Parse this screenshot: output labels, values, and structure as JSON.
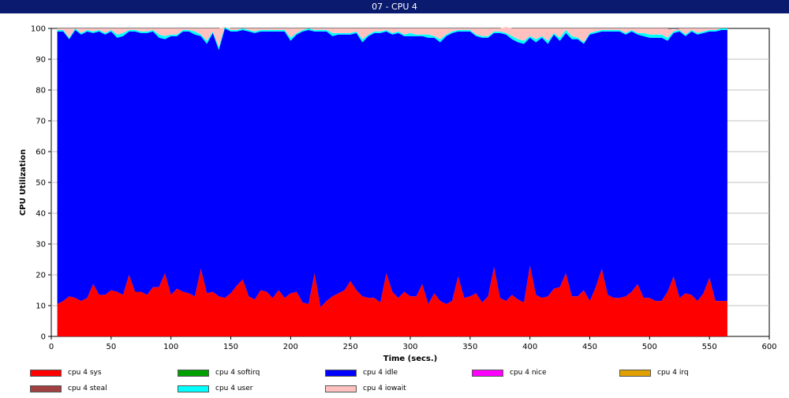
{
  "window": {
    "title": "07 - CPU 4"
  },
  "chart_data": {
    "type": "area",
    "stacked": true,
    "title": "07 - CPU 4",
    "xlabel": "Time (secs.)",
    "ylabel": "CPU Utilization",
    "xlim": [
      0,
      600
    ],
    "ylim": [
      0,
      100
    ],
    "xticks": [
      0,
      50,
      100,
      150,
      200,
      250,
      300,
      350,
      400,
      450,
      500,
      550,
      600
    ],
    "yticks": [
      0,
      10,
      20,
      30,
      40,
      50,
      60,
      70,
      80,
      90,
      100
    ],
    "grid": "horizontal",
    "legend_position": "bottom",
    "x": [
      5,
      10,
      15,
      20,
      25,
      30,
      35,
      40,
      45,
      50,
      55,
      60,
      65,
      70,
      75,
      80,
      85,
      90,
      95,
      100,
      105,
      110,
      115,
      120,
      125,
      130,
      135,
      140,
      145,
      150,
      155,
      160,
      165,
      170,
      175,
      180,
      185,
      190,
      195,
      200,
      205,
      210,
      215,
      220,
      225,
      230,
      235,
      240,
      245,
      250,
      255,
      260,
      265,
      270,
      275,
      280,
      285,
      290,
      295,
      300,
      305,
      310,
      315,
      320,
      325,
      330,
      335,
      340,
      345,
      350,
      355,
      360,
      365,
      370,
      375,
      380,
      385,
      390,
      395,
      400,
      405,
      410,
      415,
      420,
      425,
      430,
      435,
      440,
      445,
      450,
      455,
      460,
      465,
      470,
      475,
      480,
      485,
      490,
      495,
      500,
      505,
      510,
      515,
      520,
      525,
      530,
      535,
      540,
      545,
      550,
      555,
      560,
      565
    ],
    "series": [
      {
        "name": "cpu 4 sys",
        "color": "#ff0000",
        "values": [
          10.5,
          11.5,
          13,
          12.5,
          11.5,
          12.5,
          17,
          13.5,
          13.5,
          15,
          14.5,
          13.5,
          20,
          14.5,
          14.5,
          13.5,
          16,
          16,
          20.5,
          13.5,
          15.5,
          14.5,
          14,
          13,
          22,
          14,
          14.5,
          13,
          12.5,
          14,
          16.5,
          18.5,
          13,
          12,
          15,
          14.5,
          12.5,
          15,
          12.5,
          14,
          14.5,
          11,
          10.5,
          20.5,
          9.5,
          11.5,
          13,
          14,
          15,
          18,
          15,
          13,
          12.5,
          12.5,
          11,
          20.5,
          14.5,
          12.5,
          14.5,
          13,
          13,
          17,
          10.5,
          14,
          11.5,
          10.5,
          11.5,
          19.5,
          12.5,
          13,
          14,
          11,
          13,
          22.5,
          12.5,
          11.5,
          13.5,
          12,
          11,
          23,
          13.5,
          12.5,
          13,
          15.5,
          16,
          20.5,
          13,
          13,
          15,
          11.5,
          16,
          22,
          13.5,
          12.5,
          12.5,
          13,
          14.5,
          17,
          12.5,
          12.5,
          11.5,
          11.5,
          14.5,
          19.5,
          12.5,
          14,
          13.5,
          11.5,
          14,
          19,
          11.5,
          11.5,
          11.5
        ]
      },
      {
        "name": "cpu 4 softirq",
        "color": "#00a000",
        "values": [
          0,
          0,
          0,
          0,
          0,
          0,
          0,
          0,
          0,
          0,
          0,
          0,
          0,
          0,
          0,
          0,
          0,
          0,
          0,
          0,
          0,
          0,
          0,
          0,
          0,
          0,
          0,
          0,
          0,
          0,
          0,
          0,
          0,
          0,
          0,
          0,
          0,
          0,
          0,
          0,
          0,
          0,
          0,
          0,
          0,
          0,
          0,
          0,
          0,
          0,
          0,
          0,
          0,
          0,
          0,
          0,
          0,
          0,
          0,
          0,
          0,
          0,
          0,
          0,
          0,
          0,
          0,
          0,
          0,
          0,
          0,
          0,
          0,
          0,
          0,
          0,
          0,
          0,
          0,
          0,
          0,
          0,
          0,
          0,
          0,
          0,
          0,
          0,
          0,
          0,
          0,
          0,
          0,
          0,
          0,
          0,
          0,
          0,
          0,
          0,
          0,
          0,
          0,
          0,
          0,
          0,
          0,
          0,
          0,
          0,
          0,
          0,
          0
        ]
      },
      {
        "name": "cpu 4 idle",
        "color": "#0000ff",
        "values": [
          88.5,
          87.5,
          83.5,
          87,
          86.5,
          86.5,
          81.5,
          85.5,
          84.5,
          84,
          82.5,
          84,
          79,
          84.5,
          84,
          85,
          83,
          81,
          76,
          84,
          82,
          84.5,
          85,
          85,
          75.5,
          81,
          84,
          80,
          87.5,
          85,
          82.5,
          81,
          86,
          86.5,
          84,
          84.5,
          86.5,
          84,
          86.5,
          82,
          83.5,
          88,
          89,
          78.5,
          89.5,
          87.5,
          84.5,
          84,
          83,
          80,
          83.5,
          82.5,
          85,
          86,
          87.5,
          78.5,
          83.5,
          86,
          83,
          84.5,
          84.5,
          80.5,
          86.5,
          83,
          84,
          87,
          87,
          79.5,
          86.5,
          86,
          83.5,
          86,
          84,
          76,
          86,
          86.5,
          83,
          83.5,
          84,
          74,
          82,
          84.5,
          82,
          82.5,
          80,
          78,
          83.5,
          83.5,
          80,
          86.5,
          82.5,
          77,
          85.5,
          86.5,
          86.5,
          85,
          84.5,
          81,
          85,
          84.5,
          85.5,
          85.5,
          81.5,
          79,
          86.5,
          83.5,
          85.5,
          86.5,
          84.5,
          80,
          87.5,
          88,
          88
        ]
      },
      {
        "name": "cpu 4 nice",
        "color": "#ff00ff",
        "values": [
          0,
          0,
          0,
          0,
          0,
          0,
          0,
          0,
          0,
          0,
          0,
          0,
          0,
          0,
          0,
          0,
          0,
          0,
          0,
          0,
          0,
          0,
          0,
          0,
          0,
          0,
          0,
          0,
          0,
          0,
          0,
          0,
          0,
          0,
          0,
          0,
          0,
          0,
          0,
          0,
          0,
          0,
          0,
          0,
          0,
          0,
          0,
          0,
          0,
          0,
          0,
          0,
          0,
          0,
          0,
          0,
          0,
          0,
          0,
          0,
          0,
          0,
          0,
          0,
          0,
          0,
          0,
          0,
          0,
          0,
          0,
          0,
          0,
          0,
          0,
          0,
          0,
          0,
          0,
          0,
          0,
          0,
          0,
          0,
          0,
          0,
          0,
          0,
          0,
          0,
          0,
          0,
          0,
          0,
          0,
          0,
          0,
          0,
          0,
          0,
          0,
          0,
          0,
          0,
          0,
          0,
          0,
          0,
          0,
          0,
          0,
          0,
          0
        ]
      },
      {
        "name": "cpu 4 irq",
        "color": "#e0a000",
        "values": [
          0,
          0,
          0,
          0,
          0,
          0,
          0,
          0,
          0,
          0,
          0,
          0,
          0,
          0,
          0,
          0,
          0,
          0,
          0,
          0,
          0,
          0,
          0,
          0,
          0,
          0,
          0,
          0,
          0,
          0,
          0,
          0,
          0,
          0,
          0,
          0,
          0,
          0,
          0,
          0,
          0,
          0,
          0,
          0,
          0,
          0,
          0,
          0,
          0,
          0,
          0,
          0,
          0,
          0,
          0,
          0,
          0,
          0,
          0,
          0,
          0,
          0,
          0,
          0,
          0,
          0,
          0,
          0,
          0,
          0,
          0,
          0,
          0,
          0,
          0,
          0,
          0,
          0,
          0,
          0,
          0,
          0,
          0,
          0,
          0,
          0,
          0,
          0,
          0,
          0,
          0,
          0,
          0,
          0,
          0,
          0,
          0,
          0,
          0,
          0,
          0,
          0,
          0,
          0,
          0,
          0,
          0,
          0,
          0,
          0,
          0,
          0,
          0
        ]
      },
      {
        "name": "cpu 4 steal",
        "color": "#a04040",
        "values": [
          0,
          0,
          0,
          0,
          0,
          0,
          0,
          0,
          0,
          0,
          0,
          0,
          0,
          0,
          0,
          0,
          0,
          0,
          0,
          0,
          0,
          0,
          0,
          0,
          0,
          0,
          0,
          0,
          0,
          0,
          0,
          0,
          0,
          0,
          0,
          0,
          0,
          0,
          0,
          0,
          0,
          0,
          0,
          0,
          0,
          0,
          0,
          0,
          0,
          0,
          0,
          0,
          0,
          0,
          0,
          0,
          0,
          0,
          0,
          0,
          0,
          0,
          0,
          0,
          0,
          0,
          0,
          0,
          0,
          0,
          0,
          0,
          0,
          0,
          0,
          0,
          0,
          0,
          0,
          0,
          0,
          0,
          0,
          0,
          0,
          0,
          0,
          0,
          0,
          0,
          0,
          0,
          0,
          0,
          0,
          0,
          0,
          0,
          0,
          0,
          0,
          0,
          0,
          0,
          0,
          0,
          0,
          0,
          0,
          0,
          0,
          0,
          0
        ]
      },
      {
        "name": "cpu 4 user",
        "color": "#00ffff",
        "values": [
          0.5,
          0.5,
          0.5,
          0.5,
          0.5,
          0.5,
          0.5,
          0.5,
          0.5,
          0.5,
          1,
          1,
          0.5,
          0.5,
          0.5,
          0.5,
          0.5,
          1,
          1,
          0.5,
          0.5,
          0.5,
          0.5,
          1,
          0.5,
          1,
          0.5,
          1,
          0.5,
          0.5,
          0.5,
          0.5,
          0.5,
          0.5,
          0.5,
          0.5,
          0.5,
          0.5,
          0.5,
          1,
          0.5,
          0.5,
          0.5,
          0.5,
          0.5,
          0.5,
          1,
          0.5,
          0.5,
          0.5,
          0.5,
          1,
          0.5,
          0.5,
          0.5,
          0.5,
          0.5,
          0.5,
          0.5,
          1,
          0.5,
          0.5,
          1,
          0.5,
          1,
          0.5,
          0.5,
          0.5,
          0.5,
          0.5,
          0.5,
          0.5,
          0.5,
          0.5,
          0.5,
          0.5,
          1,
          1,
          1,
          0.5,
          1,
          0.5,
          1,
          0.5,
          1,
          1,
          1,
          0.5,
          0.5,
          0.5,
          0.5,
          0.5,
          0.5,
          0.5,
          0.5,
          0.5,
          0.5,
          0.5,
          1,
          1,
          1,
          1,
          1,
          0.5,
          0.5,
          0.5,
          0.5,
          0.5,
          0.5,
          0.5,
          0.5,
          0.5,
          0.5
        ]
      },
      {
        "name": "cpu 4 iowait",
        "color": "#ffc0c0",
        "values": [
          0.5,
          0.5,
          3,
          0,
          1.5,
          0.5,
          1,
          0.5,
          1.5,
          0.5,
          2,
          1.5,
          0.5,
          0.5,
          1,
          1,
          0.5,
          2,
          2.5,
          2,
          2,
          0.5,
          0.5,
          1,
          2,
          4,
          1,
          6,
          0,
          0.5,
          0.5,
          0,
          0.5,
          1,
          0.5,
          0.5,
          0.5,
          0.5,
          0.5,
          3,
          1.5,
          0.5,
          0,
          0.5,
          0.5,
          0.5,
          1.5,
          1.5,
          1.5,
          1.5,
          1,
          3.5,
          2,
          1,
          1,
          0.5,
          1.5,
          1,
          2,
          1.5,
          2,
          2,
          2,
          2.5,
          3.5,
          2,
          1,
          0.5,
          0.5,
          0.5,
          2,
          2.5,
          2.5,
          1,
          1,
          2,
          2.5,
          3.5,
          4,
          2.5,
          3.5,
          2.5,
          4,
          1.5,
          3,
          0.5,
          2.5,
          3,
          4.5,
          1.5,
          1,
          0.5,
          0.5,
          0.5,
          0.5,
          1.5,
          0.5,
          1.5,
          1.5,
          2,
          2,
          2,
          3,
          0.5,
          0.5,
          2,
          0.5,
          1.5,
          1,
          0.5,
          0.5,
          0,
          0
        ]
      }
    ]
  }
}
